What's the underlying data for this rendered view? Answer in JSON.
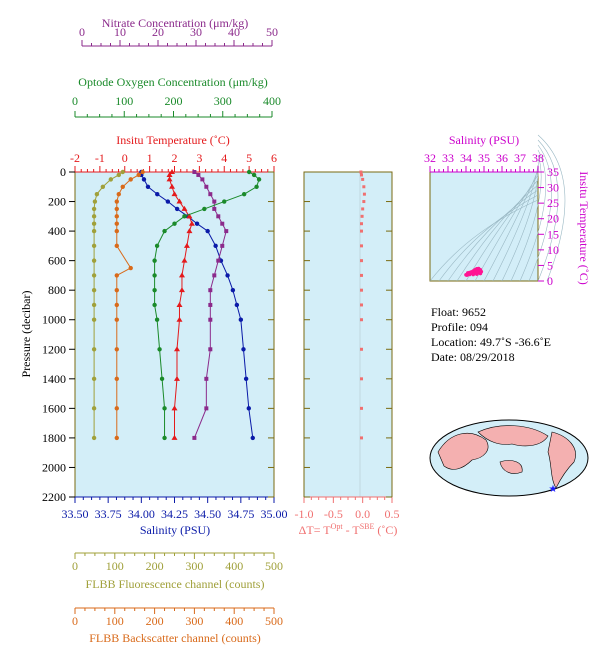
{
  "colors": {
    "nitrate": "#8b2a8b",
    "oxygen": "#1a8a2a",
    "temperature": "#e41a1c",
    "salinity": "#0a1aa8",
    "fluorescence": "#a0a03a",
    "backscatter": "#d96a1a",
    "panel_bg": "#d3eef8",
    "dt": "#f07070",
    "ts_label": "#cc00cc",
    "frame_axis": "#7a6a10"
  },
  "axes": {
    "nitrate": {
      "label": "Nitrate Concentration (μm/kg)",
      "ticks": [
        "0",
        "10",
        "20",
        "30",
        "40",
        "50"
      ]
    },
    "oxygen": {
      "label": "Optode Oxygen Concentration (μm/kg)",
      "ticks": [
        "0",
        "100",
        "200",
        "300",
        "400"
      ]
    },
    "temperature": {
      "label": "Insitu Temperature (˚C)",
      "ticks": [
        "-2",
        "-1",
        "0",
        "1",
        "2",
        "3",
        "4",
        "5",
        "6"
      ]
    },
    "salinity": {
      "label": "Salinity (PSU)",
      "ticks": [
        "33.50",
        "33.75",
        "34.00",
        "34.25",
        "34.50",
        "34.75",
        "35.00"
      ]
    },
    "pressure": {
      "label": "Pressure (decibar)",
      "ticks": [
        "0",
        "200",
        "400",
        "600",
        "800",
        "1000",
        "1200",
        "1400",
        "1600",
        "1800",
        "2000",
        "2200"
      ]
    },
    "fluorescence": {
      "label": "FLBB Fluorescence channel (counts)",
      "ticks": [
        "0",
        "100",
        "200",
        "300",
        "400",
        "500"
      ]
    },
    "backscatter": {
      "label": "FLBB Backscatter channel (counts)",
      "ticks": [
        "0",
        "100",
        "200",
        "300",
        "400",
        "500"
      ]
    },
    "dt": {
      "label_parts": [
        "ΔT= T",
        "Opt",
        " - T",
        "SBE",
        " (˚C)"
      ],
      "ticks": [
        "-1.0",
        "-0.5",
        "0.0",
        "0.5"
      ]
    },
    "ts_salinity": {
      "label": "Salinity (PSU)",
      "ticks": [
        "32",
        "33",
        "34",
        "35",
        "36",
        "37",
        "38"
      ]
    },
    "ts_temperature": {
      "label": "Insitu Temperature (˚C)",
      "ticks": [
        "0",
        "5",
        "10",
        "15",
        "20",
        "25",
        "30",
        "35"
      ]
    }
  },
  "info": {
    "float": "Float:  9652",
    "profile": "Profile:  094",
    "location": "Location:  49.7˚S  -36.6˚E",
    "date": "Date:  08/29/2018"
  },
  "chart_data": [
    {
      "type": "line",
      "y_axis": "Pressure (decibar)",
      "ylim": [
        2200,
        0
      ],
      "series": [
        {
          "name": "Salinity (PSU)",
          "xlim": [
            33.5,
            35.0
          ],
          "x": [
            34.0,
            34.0,
            34.02,
            34.05,
            34.12,
            34.2,
            34.27,
            34.35,
            34.42,
            34.5,
            34.56,
            34.6,
            34.65,
            34.69,
            34.72,
            34.75,
            34.77,
            34.79,
            34.81,
            34.84
          ],
          "y": [
            0,
            20,
            50,
            100,
            150,
            200,
            250,
            300,
            350,
            400,
            500,
            600,
            700,
            800,
            900,
            1000,
            1200,
            1400,
            1600,
            1800
          ]
        },
        {
          "name": "Insitu Temperature (˚C)",
          "xlim": [
            -2,
            6
          ],
          "x": [
            1.9,
            1.8,
            1.8,
            1.9,
            2.0,
            2.2,
            2.4,
            2.6,
            2.7,
            2.6,
            2.5,
            2.4,
            2.3,
            2.3,
            2.2,
            2.2,
            2.1,
            2.1,
            2.0,
            2.0
          ],
          "y": [
            0,
            20,
            50,
            100,
            150,
            200,
            250,
            300,
            350,
            400,
            500,
            600,
            700,
            800,
            900,
            1000,
            1200,
            1400,
            1600,
            1800
          ]
        },
        {
          "name": "Nitrate Concentration (μm/kg)",
          "xlim": [
            0,
            50
          ],
          "x": [
            30,
            31,
            32,
            33,
            34,
            35,
            35,
            36,
            37,
            38,
            37,
            36,
            35,
            34,
            34,
            34,
            34,
            33,
            33,
            30
          ],
          "y": [
            0,
            20,
            50,
            100,
            150,
            200,
            250,
            300,
            350,
            400,
            500,
            600,
            700,
            800,
            900,
            1000,
            1200,
            1400,
            1600,
            1800
          ]
        },
        {
          "name": "Optode Oxygen Concentration (μm/kg)",
          "xlim": [
            0,
            400
          ],
          "x": [
            350,
            360,
            370,
            365,
            340,
            300,
            260,
            220,
            200,
            180,
            165,
            160,
            160,
            160,
            160,
            165,
            170,
            175,
            180,
            180
          ],
          "y": [
            0,
            20,
            50,
            100,
            150,
            200,
            250,
            300,
            350,
            400,
            500,
            600,
            700,
            800,
            900,
            1000,
            1200,
            1400,
            1600,
            1800
          ]
        },
        {
          "name": "FLBB Fluorescence channel (counts)",
          "xlim": [
            0,
            500
          ],
          "x": [
            120,
            110,
            90,
            70,
            55,
            50,
            48,
            48,
            48,
            48,
            48,
            48,
            48,
            48,
            48,
            48,
            48,
            48,
            48,
            48
          ],
          "y": [
            0,
            20,
            50,
            100,
            150,
            200,
            250,
            300,
            350,
            400,
            500,
            600,
            700,
            800,
            900,
            1000,
            1200,
            1400,
            1600,
            1800
          ]
        },
        {
          "name": "FLBB Backscatter channel (counts)",
          "xlim": [
            0,
            500
          ],
          "x": [
            170,
            160,
            140,
            120,
            110,
            105,
            105,
            105,
            105,
            105,
            105,
            140,
            105,
            105,
            105,
            105,
            105,
            105,
            105,
            105
          ],
          "y": [
            0,
            20,
            50,
            100,
            150,
            200,
            250,
            300,
            350,
            400,
            500,
            650,
            700,
            800,
            900,
            1000,
            1200,
            1400,
            1600,
            1800
          ]
        }
      ]
    },
    {
      "type": "scatter",
      "xlabel": "ΔT= TOpt - TSBE (˚C)",
      "xlim": [
        -1.0,
        0.5
      ],
      "ylim": [
        2200,
        0
      ],
      "x": [
        -0.03,
        -0.02,
        0.0,
        0.02,
        0.03,
        0.02,
        0.0,
        -0.01,
        -0.02,
        -0.02,
        -0.02,
        -0.02,
        -0.02,
        -0.02,
        -0.02,
        -0.02,
        -0.02,
        -0.02,
        -0.02,
        -0.02
      ],
      "y": [
        0,
        20,
        50,
        100,
        150,
        200,
        250,
        300,
        350,
        400,
        500,
        600,
        700,
        800,
        900,
        1000,
        1200,
        1400,
        1600,
        1800
      ]
    },
    {
      "type": "scatter",
      "xlabel": "Salinity (PSU)",
      "ylabel": "Insitu Temperature (˚C)",
      "xlim": [
        32,
        38
      ],
      "ylim": [
        0,
        35
      ],
      "x": [
        34.0,
        34.1,
        34.2,
        34.3,
        34.4,
        34.5,
        34.6,
        34.7,
        34.8,
        34.85,
        34.8,
        34.6,
        34.4,
        34.2,
        34.05
      ],
      "y": [
        2.0,
        2.6,
        2.7,
        2.9,
        3.2,
        3.6,
        3.9,
        4.0,
        3.6,
        3.0,
        2.4,
        2.2,
        2.1,
        2.1,
        1.9
      ]
    }
  ]
}
